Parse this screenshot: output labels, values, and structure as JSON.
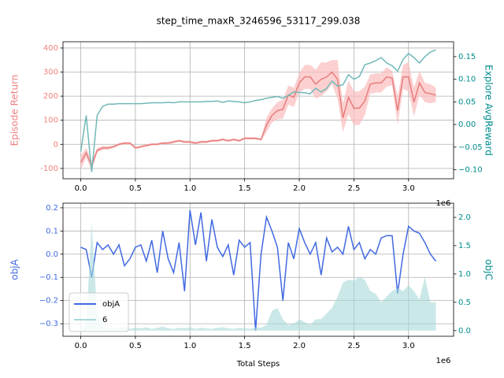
{
  "title": "step_time_maxR_3246596_53117_299.038",
  "chart_data": [
    {
      "type": "line",
      "x": [
        0,
        0.05,
        0.1,
        0.15,
        0.2,
        0.25,
        0.3,
        0.35,
        0.4,
        0.45,
        0.5,
        0.55,
        0.6,
        0.65,
        0.7,
        0.75,
        0.8,
        0.85,
        0.9,
        0.95,
        1.0,
        1.05,
        1.1,
        1.15,
        1.2,
        1.25,
        1.3,
        1.35,
        1.4,
        1.45,
        1.5,
        1.55,
        1.6,
        1.65,
        1.7,
        1.75,
        1.8,
        1.85,
        1.9,
        1.95,
        2.0,
        2.05,
        2.1,
        2.15,
        2.2,
        2.25,
        2.3,
        2.35,
        2.4,
        2.45,
        2.5,
        2.55,
        2.6,
        2.65,
        2.7,
        2.75,
        2.8,
        2.85,
        2.9,
        2.95,
        3.0,
        3.05,
        3.1,
        3.15,
        3.2,
        3.25
      ],
      "xlim": [
        -0.1625,
        3.4125
      ],
      "xticks": [
        {
          "value": 0,
          "label": "0.0"
        },
        {
          "value": 0.5,
          "label": "0.5"
        },
        {
          "value": 1,
          "label": "1.0"
        },
        {
          "value": 1.5,
          "label": "1.5"
        },
        {
          "value": 2,
          "label": "2.0"
        },
        {
          "value": 2.5,
          "label": "2.5"
        },
        {
          "value": 3,
          "label": "3.0"
        }
      ],
      "x_offset_label": "1e6",
      "ylim": [
        -143,
        426
      ],
      "yticks": [
        -100,
        0,
        100,
        200,
        300,
        400
      ],
      "y2lim": [
        -0.12,
        0.183
      ],
      "y2ticks": [
        {
          "value": -0.1,
          "label": "−0.10"
        },
        {
          "value": -0.05,
          "label": "−0.05"
        },
        {
          "value": 0,
          "label": "0.00"
        },
        {
          "value": 0.05,
          "label": "0.05"
        },
        {
          "value": 0.1,
          "label": "0.10"
        },
        {
          "value": 0.15,
          "label": "0.15"
        }
      ],
      "ylabel": "Episode Return",
      "ylabel_color": "#f08080",
      "y2label": "Explore AvgReward",
      "y2label_color": "#008b8b",
      "grid": true,
      "series": [
        {
          "color": "#e87c7c",
          "band_color": "#fbbcbc",
          "axis": "y",
          "values": [
            -75,
            -35,
            -90,
            -25,
            -15,
            -15,
            -10,
            0,
            5,
            5,
            -15,
            -10,
            -5,
            0,
            0,
            5,
            5,
            10,
            15,
            10,
            10,
            5,
            10,
            10,
            15,
            15,
            20,
            15,
            20,
            15,
            25,
            25,
            25,
            20,
            80,
            120,
            140,
            145,
            205,
            195,
            255,
            280,
            280,
            250,
            270,
            280,
            300,
            270,
            110,
            195,
            150,
            150,
            180,
            250,
            255,
            255,
            280,
            275,
            140,
            280,
            280,
            175,
            255,
            215,
            210,
            205
          ],
          "errors": [
            30,
            20,
            20,
            10,
            8,
            8,
            5,
            5,
            5,
            5,
            5,
            5,
            5,
            5,
            5,
            5,
            5,
            5,
            5,
            5,
            5,
            5,
            5,
            5,
            5,
            5,
            5,
            5,
            5,
            5,
            5,
            5,
            5,
            5,
            30,
            30,
            35,
            40,
            40,
            40,
            40,
            50,
            50,
            60,
            70,
            60,
            50,
            80,
            60,
            70,
            70,
            70,
            60,
            40,
            40,
            40,
            40,
            30,
            60,
            50,
            60,
            60,
            50,
            40,
            40,
            30
          ]
        },
        {
          "color": "#72b8b8",
          "axis": "y2",
          "values": [
            -0.06,
            0.02,
            -0.105,
            0.02,
            0.04,
            0.045,
            0.045,
            0.046,
            0.046,
            0.046,
            0.046,
            0.046,
            0.047,
            0.048,
            0.048,
            0.048,
            0.049,
            0.048,
            0.05,
            0.05,
            0.05,
            0.05,
            0.05,
            0.051,
            0.051,
            0.052,
            0.049,
            0.052,
            0.051,
            0.05,
            0.048,
            0.05,
            0.053,
            0.055,
            0.058,
            0.06,
            0.062,
            0.058,
            0.064,
            0.072,
            0.071,
            0.07,
            0.068,
            0.08,
            0.072,
            0.08,
            0.096,
            0.085,
            0.088,
            0.11,
            0.1,
            0.106,
            0.132,
            0.136,
            0.141,
            0.148,
            0.136,
            0.13,
            0.118,
            0.144,
            0.157,
            0.148,
            0.136,
            0.15,
            0.16,
            0.165
          ]
        }
      ]
    },
    {
      "type": "line",
      "x": [
        0,
        0.05,
        0.1,
        0.15,
        0.2,
        0.25,
        0.3,
        0.35,
        0.4,
        0.45,
        0.5,
        0.55,
        0.6,
        0.65,
        0.7,
        0.75,
        0.8,
        0.85,
        0.9,
        0.95,
        1.0,
        1.05,
        1.1,
        1.15,
        1.2,
        1.25,
        1.3,
        1.35,
        1.4,
        1.45,
        1.5,
        1.55,
        1.6,
        1.65,
        1.7,
        1.75,
        1.8,
        1.85,
        1.9,
        1.95,
        2.0,
        2.05,
        2.1,
        2.15,
        2.2,
        2.25,
        2.3,
        2.35,
        2.4,
        2.45,
        2.5,
        2.55,
        2.6,
        2.65,
        2.7,
        2.75,
        2.8,
        2.85,
        2.9,
        2.95,
        3.0,
        3.05,
        3.1,
        3.15,
        3.2,
        3.25
      ],
      "xlim": [
        -0.1625,
        3.4125
      ],
      "xticks": [
        {
          "value": 0,
          "label": "0.0"
        },
        {
          "value": 0.5,
          "label": "0.5"
        },
        {
          "value": 1,
          "label": "1.0"
        },
        {
          "value": 1.5,
          "label": "1.5"
        },
        {
          "value": 2,
          "label": "2.0"
        },
        {
          "value": 2.5,
          "label": "2.5"
        },
        {
          "value": 3,
          "label": "3.0"
        }
      ],
      "x_offset_label": "1e6",
      "xlabel": "Total Steps",
      "ylim": [
        -0.354,
        0.22
      ],
      "yticks": [
        {
          "value": -0.3,
          "label": "−0.3"
        },
        {
          "value": -0.2,
          "label": "−0.2"
        },
        {
          "value": -0.1,
          "label": "−0.1"
        },
        {
          "value": 0,
          "label": "0.0"
        },
        {
          "value": 0.1,
          "label": "0.1"
        },
        {
          "value": 0.2,
          "label": "0.2"
        }
      ],
      "y2lim": [
        -0.1,
        2.25
      ],
      "y2ticks": [
        {
          "value": 0,
          "label": "0.0"
        },
        {
          "value": 0.5,
          "label": "0.5"
        },
        {
          "value": 1,
          "label": "1.0"
        },
        {
          "value": 1.5,
          "label": "1.5"
        },
        {
          "value": 2,
          "label": "2.0"
        }
      ],
      "ylabel": "objA",
      "ylabel_color": "#4169e1",
      "y2label": "objC",
      "y2label_color": "#008b8b",
      "grid": true,
      "legend": "lower left",
      "series": [
        {
          "name": "objA",
          "color": "#4169e1",
          "axis": "y",
          "values": [
            0.03,
            0.02,
            -0.1,
            0.05,
            0.02,
            0.04,
            0.0,
            0.04,
            -0.05,
            -0.02,
            0.03,
            0.04,
            -0.03,
            0.06,
            -0.08,
            0.1,
            -0.02,
            -0.08,
            0.05,
            -0.16,
            0.19,
            0.04,
            0.18,
            -0.03,
            0.15,
            0.03,
            -0.01,
            0.04,
            -0.09,
            0.06,
            0.03,
            0.05,
            -0.33,
            0.0,
            0.16,
            0.1,
            0.03,
            -0.2,
            0.05,
            -0.02,
            0.11,
            0.05,
            0.0,
            0.05,
            -0.09,
            0.07,
            0.01,
            0.03,
            0.0,
            0.12,
            0.02,
            0.05,
            -0.02,
            0.02,
            0.0,
            0.07,
            0.08,
            0.08,
            -0.17,
            0.0,
            0.12,
            0.1,
            0.09,
            0.05,
            0.0,
            -0.03
          ]
        },
        {
          "name": "6",
          "color": "#a9d8d8",
          "axis": "y2",
          "fill": true,
          "values": [
            0.02,
            0.1,
            1.9,
            0.3,
            0.1,
            0.05,
            0.05,
            0.03,
            0.08,
            0.03,
            0.05,
            0.04,
            0.06,
            0.03,
            0.05,
            0.07,
            0.04,
            0.03,
            0.05,
            0.04,
            0.06,
            0.03,
            0.05,
            0.04,
            0.03,
            0.05,
            0.06,
            0.04,
            0.03,
            0.05,
            0.04,
            0.03,
            0.06,
            0.05,
            0.1,
            0.35,
            0.4,
            0.2,
            0.1,
            0.12,
            0.2,
            0.15,
            0.1,
            0.2,
            0.2,
            0.3,
            0.4,
            0.6,
            0.85,
            0.9,
            0.88,
            0.95,
            0.9,
            0.7,
            0.65,
            0.5,
            0.6,
            0.7,
            0.75,
            0.7,
            0.8,
            0.7,
            0.55,
            0.95,
            0.5,
            0.5
          ]
        }
      ]
    }
  ]
}
